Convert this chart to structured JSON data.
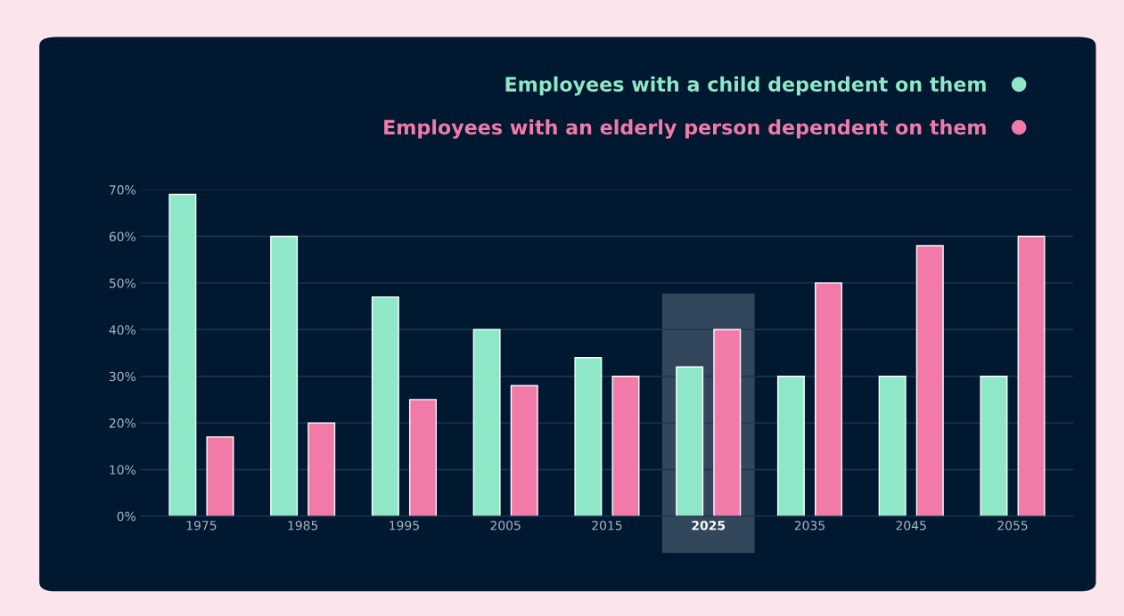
{
  "chart_data": {
    "type": "bar",
    "categories": [
      "1975",
      "1985",
      "1995",
      "2005",
      "2015",
      "2025",
      "2035",
      "2045",
      "2055"
    ],
    "series": [
      {
        "name": "Employees with a child dependent on them",
        "color": "#8ee8c8",
        "values": [
          69,
          60,
          47,
          40,
          34,
          32,
          30,
          30,
          30
        ]
      },
      {
        "name": "Employees with an elderly person dependent on them",
        "color": "#f27aa8",
        "values": [
          17,
          20,
          25,
          28,
          30,
          40,
          50,
          58,
          60
        ]
      }
    ],
    "ylim": [
      0,
      70
    ],
    "yticks": [
      {
        "value": 0,
        "label": "0%"
      },
      {
        "value": 10,
        "label": "10%"
      },
      {
        "value": 20,
        "label": "20%"
      },
      {
        "value": 30,
        "label": "30%"
      },
      {
        "value": 40,
        "label": "40%"
      },
      {
        "value": 50,
        "label": "50%"
      },
      {
        "value": 60,
        "label": "60%"
      },
      {
        "value": 70,
        "label": "70%"
      }
    ],
    "bands": [
      {
        "axis": "x",
        "from": "2025",
        "to": "2025",
        "color": "#33475c"
      }
    ],
    "grid": "y",
    "legend": "top right"
  }
}
